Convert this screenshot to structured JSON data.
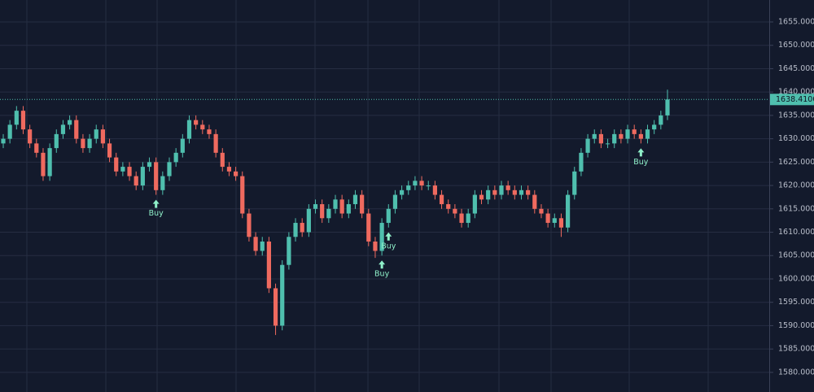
{
  "chart_data": {
    "type": "candlestick",
    "open": [
      1629,
      1630,
      1633,
      1636,
      1632,
      1629,
      1627,
      1622,
      1628,
      1631,
      1633,
      1634,
      1630,
      1628,
      1630,
      1632,
      1629,
      1626,
      1623,
      1624,
      1622,
      1620,
      1624,
      1625,
      1619,
      1622,
      1625,
      1627,
      1630,
      1634,
      1633,
      1632,
      1631,
      1627,
      1624,
      1623,
      1622,
      1614,
      1609,
      1606,
      1608,
      1598,
      1590,
      1603,
      1609,
      1612,
      1610,
      1615,
      1616,
      1613,
      1615,
      1617,
      1614,
      1616,
      1618,
      1614,
      1608,
      1606,
      1612,
      1615,
      1618,
      1619,
      1620,
      1621,
      1620,
      1620,
      1618,
      1616,
      1615,
      1614,
      1612,
      1614,
      1618,
      1617,
      1619,
      1618,
      1620,
      1619,
      1618,
      1619,
      1618,
      1615,
      1614,
      1612,
      1613,
      1611,
      1618,
      1623,
      1627,
      1630,
      1631,
      1629,
      1629,
      1631,
      1630,
      1632,
      1631,
      1630,
      1632,
      1633,
      1635
    ],
    "high": [
      1631,
      1634,
      1637,
      1637,
      1633,
      1630,
      1628,
      1629,
      1632,
      1634,
      1635,
      1635,
      1631,
      1631,
      1633,
      1633,
      1630,
      1627,
      1625,
      1625,
      1623,
      1625,
      1626,
      1626,
      1623,
      1626,
      1628,
      1631,
      1635,
      1635,
      1634,
      1633,
      1632,
      1628,
      1625,
      1624,
      1623,
      1615,
      1610,
      1609,
      1609,
      1599,
      1604,
      1610,
      1613,
      1613,
      1616,
      1617,
      1617,
      1616,
      1618,
      1618,
      1617,
      1619,
      1619,
      1615,
      1609,
      1613,
      1616,
      1619,
      1620,
      1621,
      1622,
      1622,
      1621,
      1621,
      1619,
      1617,
      1616,
      1615,
      1615,
      1619,
      1619,
      1620,
      1620,
      1621,
      1621,
      1620,
      1620,
      1620,
      1619,
      1616,
      1615,
      1614,
      1614,
      1619,
      1624,
      1628,
      1631,
      1632,
      1632,
      1630,
      1632,
      1632,
      1633,
      1633,
      1632,
      1633,
      1634,
      1636,
      1640.5
    ],
    "low": [
      1628,
      1629,
      1632,
      1631,
      1628,
      1626,
      1621,
      1621,
      1627,
      1630,
      1632,
      1629,
      1627,
      1627,
      1629,
      1628,
      1625,
      1622,
      1622,
      1621,
      1619,
      1619,
      1623,
      1618,
      1618,
      1621,
      1624,
      1626,
      1629,
      1632,
      1631,
      1630,
      1626,
      1623,
      1622,
      1621,
      1613,
      1608,
      1605,
      1605,
      1597,
      1588,
      1589,
      1602,
      1608,
      1609,
      1609,
      1614,
      1612,
      1612,
      1614,
      1613,
      1613,
      1615,
      1613,
      1607,
      1604.5,
      1605,
      1611,
      1614,
      1617,
      1618,
      1619,
      1619,
      1619,
      1617,
      1615,
      1614,
      1613,
      1611,
      1611,
      1613,
      1616,
      1616,
      1617,
      1617,
      1618,
      1617,
      1617,
      1617,
      1614,
      1613,
      1611,
      1611,
      1609,
      1610,
      1617,
      1622,
      1626,
      1629,
      1628,
      1628,
      1628,
      1629,
      1629,
      1630,
      1629,
      1629,
      1631,
      1632,
      1634
    ],
    "close": [
      1630,
      1633,
      1636,
      1632,
      1629,
      1627,
      1622,
      1628,
      1631,
      1633,
      1634,
      1630,
      1628,
      1630,
      1632,
      1629,
      1626,
      1623,
      1624,
      1622,
      1620,
      1624,
      1625,
      1619,
      1622,
      1625,
      1627,
      1630,
      1634,
      1633,
      1632,
      1631,
      1627,
      1624,
      1623,
      1622,
      1614,
      1609,
      1606,
      1608,
      1598,
      1590,
      1603,
      1609,
      1612,
      1610,
      1615,
      1616,
      1613,
      1615,
      1617,
      1614,
      1616,
      1618,
      1614,
      1608,
      1606,
      1612,
      1615,
      1618,
      1619,
      1620,
      1621,
      1620,
      1620,
      1618,
      1616,
      1615,
      1614,
      1612,
      1614,
      1618,
      1617,
      1619,
      1618,
      1620,
      1619,
      1618,
      1619,
      1618,
      1615,
      1614,
      1612,
      1613,
      1611,
      1618,
      1623,
      1627,
      1630,
      1631,
      1629,
      1629,
      1631,
      1630,
      1632,
      1631,
      1630,
      1632,
      1633,
      1635,
      1638.41
    ],
    "up_color": "#4fbfae",
    "down_color": "#ef6a5f",
    "ylim": [
      1575.8,
      1659.7
    ],
    "yticks": [
      {
        "value": 1580,
        "label": "1580.0000"
      },
      {
        "value": 1585,
        "label": "1585.0000"
      },
      {
        "value": 1590,
        "label": "1590.0000"
      },
      {
        "value": 1595,
        "label": "1595.0000"
      },
      {
        "value": 1600,
        "label": "1600.0000"
      },
      {
        "value": 1605,
        "label": "1605.0000"
      },
      {
        "value": 1610,
        "label": "1610.0000"
      },
      {
        "value": 1615,
        "label": "1615.0000"
      },
      {
        "value": 1620,
        "label": "1620.0000"
      },
      {
        "value": 1625,
        "label": "1625.0000"
      },
      {
        "value": 1630,
        "label": "1630.0000"
      },
      {
        "value": 1635,
        "label": "1635.0000"
      },
      {
        "value": 1640,
        "label": "1640.0000"
      },
      {
        "value": 1645,
        "label": "1645.0000"
      },
      {
        "value": 1650,
        "label": "1650.0000"
      },
      {
        "value": 1655,
        "label": "1655.0000"
      }
    ],
    "grid": true,
    "last_price": {
      "value": 1638.41,
      "label": "1638.4100"
    },
    "annotations": [
      {
        "index": 23,
        "text": "Buy"
      },
      {
        "index": 57,
        "text": "Buy"
      },
      {
        "index": 58,
        "text": "Buy"
      },
      {
        "index": 96,
        "text": "Buy"
      }
    ]
  }
}
